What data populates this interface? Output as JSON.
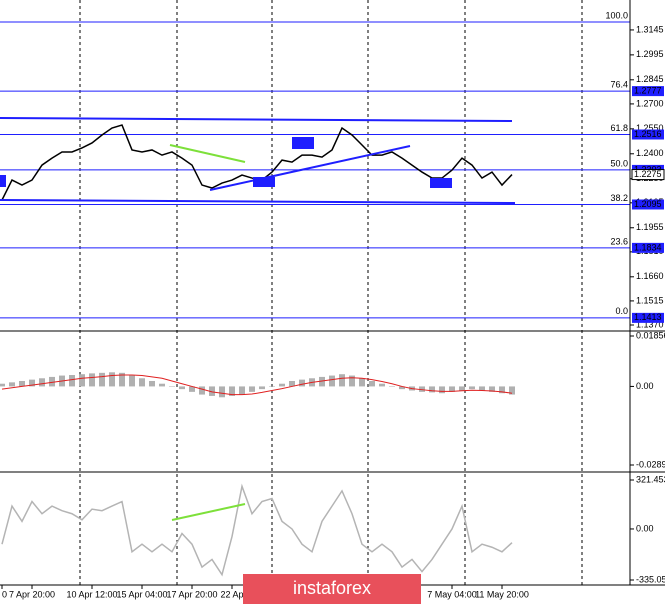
{
  "chart_data": [
    {
      "type": "line",
      "categories": [
        "0",
        null,
        null,
        "7 Apr 20:00",
        null,
        null,
        null,
        null,
        null,
        "10 Apr 12:00",
        null,
        null,
        null,
        null,
        "15 Apr 04:00",
        null,
        null,
        null,
        null,
        "17 Apr 20:00",
        null,
        null,
        null,
        "22 Ap",
        null,
        null,
        null,
        null,
        null,
        null,
        null,
        null,
        null,
        null,
        null,
        null,
        null,
        null,
        null,
        null,
        null,
        null,
        null,
        null,
        null,
        "7 May 04:00",
        null,
        null,
        null,
        null,
        "11 May 20:00",
        null
      ],
      "values": [
        1.2122,
        1.2242,
        1.2212,
        1.2242,
        1.2332,
        1.2374,
        1.2411,
        1.2411,
        1.2435,
        1.2465,
        1.2513,
        1.2555,
        1.2573,
        1.2423,
        1.2411,
        1.2423,
        1.2392,
        1.2411,
        1.2374,
        1.2332,
        1.2212,
        1.2194,
        1.2224,
        1.2242,
        1.2272,
        1.2254,
        1.2242,
        1.229,
        1.2362,
        1.235,
        1.2392,
        1.2392,
        1.238,
        1.2423,
        1.2555,
        1.2513,
        1.2453,
        1.2392,
        1.2392,
        1.2411,
        1.2374,
        1.2332,
        1.229,
        1.2254,
        1.2254,
        1.2302,
        1.2374,
        1.2332,
        1.2254,
        1.229,
        1.2212,
        1.2275
      ],
      "color": "#000000",
      "ylim": [
        1.134,
        1.3295
      ],
      "yticks": [
        1.3145,
        1.2995,
        1.2845,
        {
          "value": 1.27,
          "label": "1.2700"
        },
        {
          "value": 1.255,
          "label": "1.2550"
        },
        {
          "value": 1.24,
          "label": "1.2400"
        },
        {
          "value": 1.225,
          "label": "1.2250"
        },
        1.2105,
        1.1955,
        {
          "value": 1.181,
          "label": "1.1810"
        },
        {
          "value": 1.166,
          "label": "1.1660"
        },
        1.1515,
        {
          "value": 1.137,
          "label": "1.1370"
        }
      ],
      "last_price": 1.2275,
      "fib_color": "#1f1fff",
      "fib_levels": [
        {
          "label": "100.0",
          "value": 1.3193
        },
        {
          "label": "76.4",
          "value": 1.2777
        },
        {
          "label": "61.8",
          "value": 1.2516
        },
        {
          "label": "50.0",
          "value": 1.2303
        },
        {
          "label": "38.2",
          "value": 1.2095
        },
        {
          "label": "23.6",
          "value": 1.1834
        },
        {
          "label": "0.0",
          "value": 1.1413
        }
      ],
      "watermark": "instaforex"
    },
    {
      "type": "macd",
      "values": [
        0.001,
        0.0015,
        0.002,
        0.0025,
        0.003,
        0.0035,
        0.004,
        0.0042,
        0.0045,
        0.0048,
        0.005,
        0.0052,
        0.005,
        0.004,
        0.003,
        0.002,
        0.001,
        0.0,
        -0.001,
        -0.002,
        -0.003,
        -0.0035,
        -0.004,
        -0.0035,
        -0.003,
        -0.002,
        -0.001,
        0.0,
        0.001,
        0.002,
        0.0025,
        0.003,
        0.0035,
        0.004,
        0.0045,
        0.004,
        0.003,
        0.002,
        0.001,
        0.0,
        -0.001,
        -0.0015,
        -0.002,
        -0.0022,
        -0.0025,
        -0.002,
        -0.0015,
        -0.001,
        -0.0015,
        -0.002,
        -0.0025,
        -0.003
      ],
      "signal": [
        -0.001,
        -0.0005,
        0,
        0.0005,
        0.001,
        0.0015,
        0.002,
        0.0025,
        0.003,
        0.0033,
        0.0036,
        0.004,
        0.0042,
        0.0042,
        0.004,
        0.0035,
        0.003,
        0.002,
        0.001,
        0,
        -0.001,
        -0.002,
        -0.0025,
        -0.003,
        -0.003,
        -0.0028,
        -0.0022,
        -0.0015,
        -0.0008,
        0,
        0.0008,
        0.0015,
        0.002,
        0.0025,
        0.003,
        0.0032,
        0.003,
        0.0025,
        0.0018,
        0.001,
        0,
        -0.0008,
        -0.0012,
        -0.0016,
        -0.0018,
        -0.0018,
        -0.0016,
        -0.0014,
        -0.0015,
        -0.0017,
        -0.002,
        -0.0025
      ],
      "color": "#b0b0b0",
      "signal_color": "#e02020",
      "ylim": [
        -0.02892,
        0.01856
      ],
      "yticks": [
        0.01856,
        {
          "value": 0,
          "label": "0.00"
        },
        -0.02892
      ]
    },
    {
      "type": "line",
      "values": [
        -100,
        150,
        50,
        180,
        100,
        150,
        120,
        100,
        60,
        130,
        120,
        150,
        180,
        -150,
        -100,
        -150,
        -100,
        -150,
        -30,
        -100,
        -250,
        -200,
        -300,
        -50,
        280,
        100,
        180,
        200,
        50,
        0,
        -100,
        -150,
        50,
        150,
        250,
        100,
        -100,
        -150,
        -100,
        -150,
        -250,
        -200,
        -280,
        -200,
        -100,
        0,
        150,
        -150,
        -100,
        -120,
        -150,
        -90
      ],
      "color": "#b4b4b4",
      "ylim": [
        -335.0593,
        321.4533
      ],
      "yticks": [
        321.4533,
        {
          "value": 0,
          "label": "0.00"
        },
        -335.0593
      ]
    }
  ]
}
